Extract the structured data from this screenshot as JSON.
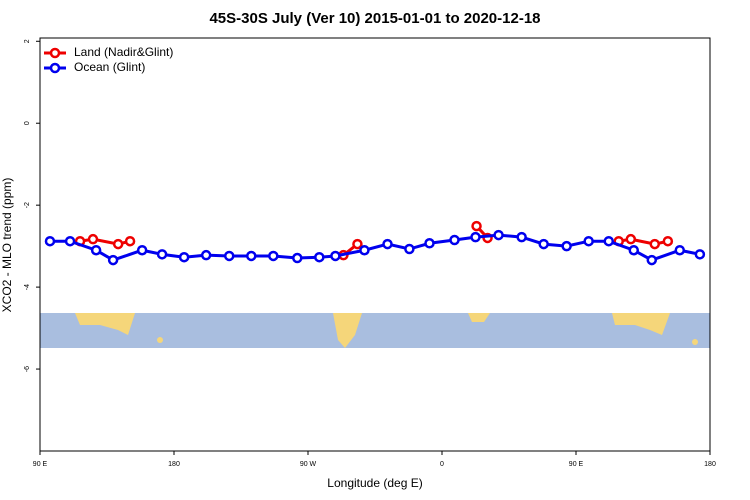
{
  "chart_data": {
    "type": "line",
    "title": "45S-30S July (Ver 10)   2015-01-01 to 2020-12-18",
    "x_label": "Longitude (deg E)",
    "y_label": "XCO2 - MLO trend (ppm)",
    "xlim": [
      90,
      540
    ],
    "xticks": [
      {
        "value": 90,
        "label": "90 E"
      },
      180,
      {
        "value": 270,
        "label": "90 W"
      },
      {
        "value": 360,
        "label": "0"
      },
      {
        "value": 450,
        "label": "90 E"
      },
      {
        "value": 540,
        "label": "180"
      }
    ],
    "ylim": [
      -8,
      2.08
    ],
    "yticks": [
      2,
      0,
      -2,
      -4,
      -6
    ],
    "legend": "top-left",
    "series": [
      {
        "name": "Land (Nadir&Glint)",
        "color": "#ee0000",
        "x": [
          116.9,
          125.6,
          142.5,
          150.5,
          200,
          293.8,
          303.2,
          350,
          383.2,
          390.6,
          420,
          478.7,
          486.8,
          502.9,
          511.7
        ],
        "values": [
          -2.88,
          -2.83,
          -2.95,
          -2.88,
          null,
          -3.22,
          -2.95,
          null,
          -2.51,
          -2.8,
          null,
          -2.88,
          -2.83,
          -2.95,
          -2.88
        ]
      },
      {
        "name": "Ocean (Glint)",
        "color": "#0000ee",
        "x": [
          96.7,
          110.2,
          127.7,
          139.1,
          158.6,
          172.0,
          186.8,
          201.6,
          217.1,
          231.9,
          246.7,
          262.8,
          277.6,
          288.4,
          307.9,
          323.4,
          338.1,
          351.6,
          368.4,
          382.5,
          398.0,
          413.5,
          428.3,
          443.7,
          458.5,
          472.0,
          488.8,
          500.9,
          519.7,
          533.2
        ],
        "values": [
          -2.88,
          -2.88,
          -3.1,
          -3.34,
          -3.1,
          -3.2,
          -3.27,
          -3.22,
          -3.24,
          -3.24,
          -3.24,
          -3.29,
          -3.27,
          -3.24,
          -3.1,
          -2.95,
          -3.07,
          -2.93,
          -2.85,
          -2.78,
          -2.73,
          -2.78,
          -2.95,
          -3.0,
          -2.88,
          -2.88,
          -3.1,
          -3.34,
          -3.1,
          -3.2
        ]
      }
    ]
  }
}
